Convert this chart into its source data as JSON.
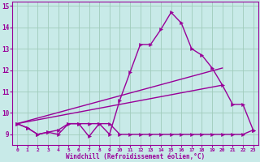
{
  "xlabel": "Windchill (Refroidissement éolien,°C)",
  "xlim": [
    -0.5,
    23.5
  ],
  "ylim": [
    8.5,
    15.2
  ],
  "yticks": [
    9,
    10,
    11,
    12,
    13,
    14,
    15
  ],
  "xticks": [
    0,
    1,
    2,
    3,
    4,
    5,
    6,
    7,
    8,
    9,
    10,
    11,
    12,
    13,
    14,
    15,
    16,
    17,
    18,
    19,
    20,
    21,
    22,
    23
  ],
  "background_color": "#c8eae8",
  "line_color": "#990099",
  "grid_color": "#a0ccbb",
  "flat_line_y": [
    9.5,
    9.3,
    9.0,
    9.1,
    9.0,
    9.5,
    9.5,
    8.9,
    9.5,
    9.5,
    9.0,
    9.0,
    9.0,
    9.0,
    9.0,
    9.0,
    9.0,
    9.0,
    9.0,
    9.0,
    9.0,
    9.0,
    9.0,
    9.2
  ],
  "jagged_line_y": [
    9.5,
    9.3,
    9.0,
    9.1,
    9.2,
    9.5,
    9.5,
    9.5,
    9.5,
    9.0,
    10.6,
    11.9,
    13.2,
    13.2,
    13.9,
    14.7,
    14.2,
    13.0,
    12.7,
    12.1,
    11.3,
    10.4,
    10.4,
    9.2
  ],
  "diag1": [
    9.5,
    12.1
  ],
  "diag2": [
    9.5,
    11.3
  ]
}
